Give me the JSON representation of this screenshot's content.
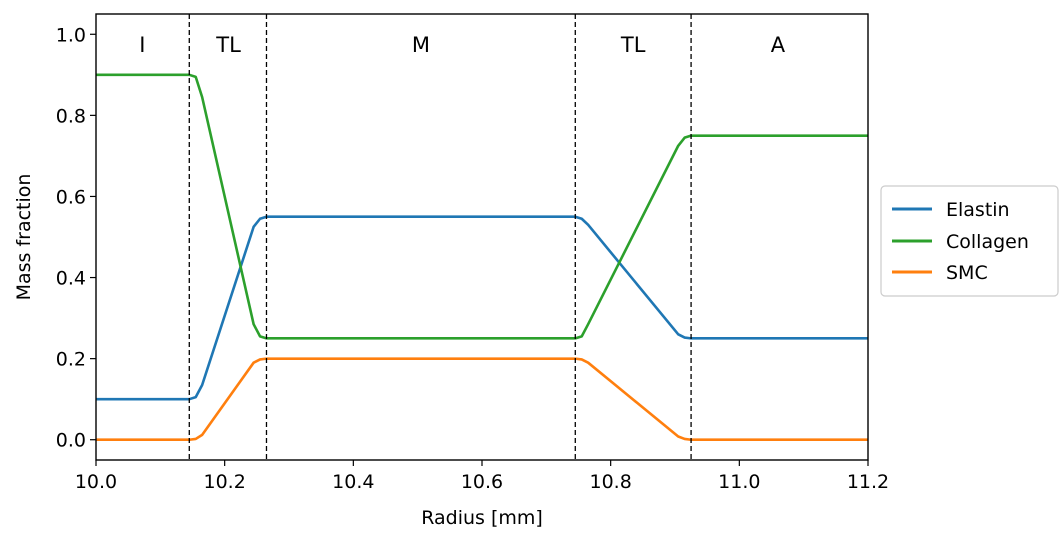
{
  "chart_data": {
    "type": "line",
    "title": "",
    "xlabel": "Radius [mm]",
    "ylabel": "Mass fraction",
    "xlim": [
      10.0,
      11.2
    ],
    "ylim": [
      -0.05,
      1.05
    ],
    "xticks": [
      10.0,
      10.2,
      10.4,
      10.6,
      10.8,
      11.0,
      11.2
    ],
    "xtick_labels": [
      "10.0",
      "10.2",
      "10.4",
      "10.6",
      "10.8",
      "11.0",
      "11.2"
    ],
    "yticks": [
      0.0,
      0.2,
      0.4,
      0.6,
      0.8,
      1.0
    ],
    "ytick_labels": [
      "0.0",
      "0.2",
      "0.4",
      "0.6",
      "0.8",
      "1.0"
    ],
    "grid": false,
    "legend_position": "outside-right",
    "region_boundaries": [
      10.145,
      10.265,
      10.745,
      10.925
    ],
    "regions": [
      {
        "label": "I",
        "x": 10.072
      },
      {
        "label": "TL",
        "x": 10.206
      },
      {
        "label": "M",
        "x": 10.505
      },
      {
        "label": "TL",
        "x": 10.835
      },
      {
        "label": "A",
        "x": 11.06
      }
    ],
    "series": [
      {
        "name": "Elastin",
        "color": "#1f77b4",
        "x": [
          10.0,
          10.145,
          10.155,
          10.165,
          10.245,
          10.255,
          10.265,
          10.745,
          10.755,
          10.765,
          10.905,
          10.915,
          10.925,
          11.2
        ],
        "y": [
          0.1,
          0.1,
          0.105,
          0.135,
          0.525,
          0.545,
          0.55,
          0.55,
          0.545,
          0.53,
          0.26,
          0.252,
          0.25,
          0.25
        ]
      },
      {
        "name": "Collagen",
        "color": "#2ca02c",
        "x": [
          10.0,
          10.145,
          10.155,
          10.165,
          10.245,
          10.255,
          10.265,
          10.745,
          10.755,
          10.765,
          10.905,
          10.915,
          10.925,
          11.2
        ],
        "y": [
          0.9,
          0.9,
          0.895,
          0.845,
          0.285,
          0.255,
          0.25,
          0.25,
          0.255,
          0.285,
          0.725,
          0.745,
          0.75,
          0.75
        ]
      },
      {
        "name": "SMC",
        "color": "#ff7f0e",
        "x": [
          10.0,
          10.145,
          10.155,
          10.165,
          10.245,
          10.255,
          10.265,
          10.745,
          10.755,
          10.765,
          10.905,
          10.915,
          10.925,
          11.2
        ],
        "y": [
          0.0,
          0.0,
          0.002,
          0.012,
          0.19,
          0.198,
          0.2,
          0.2,
          0.198,
          0.19,
          0.008,
          0.002,
          0.0,
          0.0
        ]
      }
    ]
  }
}
